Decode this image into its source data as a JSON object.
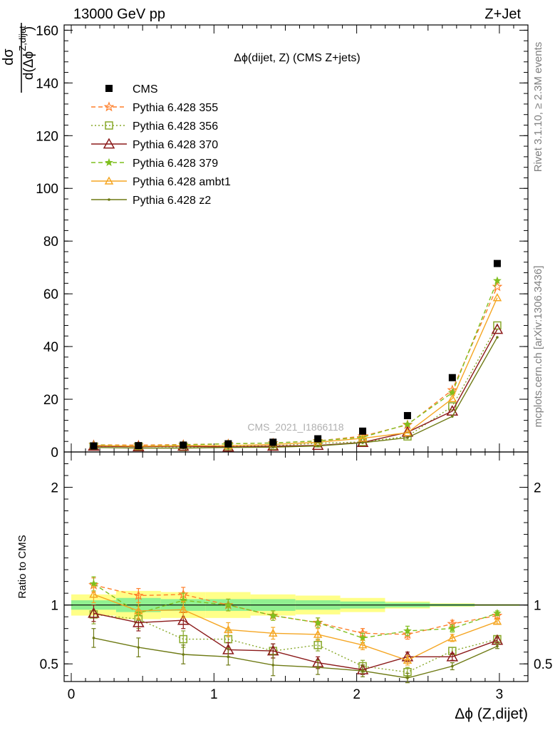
{
  "header": {
    "left": "13000 GeV pp",
    "right": "Z+Jet"
  },
  "side_text": {
    "rivet": "Rivet 3.1.10, ≥ 2.3M events",
    "mcplots": "mcplots.cern.ch [arXiv:1306.3436]"
  },
  "watermark": "CMS_2021_I1866118",
  "chart_data": [
    {
      "type": "scatter",
      "panel": "main",
      "title": "Δϕ(dijet, Z) (CMS Z+jets)",
      "ylabel": "dσ / d(Δϕ Z,dijet)",
      "xlim": [
        -0.05,
        3.2
      ],
      "ylim": [
        0,
        162
      ],
      "xticks": [
        "0",
        "1",
        "2",
        "3"
      ],
      "yticks": [
        "0",
        "20",
        "40",
        "60",
        "80",
        "100",
        "120",
        "140",
        "160"
      ],
      "x": [
        0.157,
        0.471,
        0.785,
        1.1,
        1.414,
        1.728,
        2.042,
        2.356,
        2.67,
        2.985
      ],
      "legend_placement": "top-left",
      "series": [
        {
          "name": "CMS",
          "color": "#000000",
          "style": "solid",
          "marker": "square",
          "values": [
            2.3,
            2.4,
            2.6,
            3.1,
            3.7,
            5.0,
            7.9,
            13.8,
            28.2,
            71.5
          ]
        },
        {
          "name": "Pythia 6.428 355",
          "color": "#ff7f2a",
          "style": "dashed",
          "marker": "star",
          "values": [
            2.7,
            2.6,
            2.8,
            3.1,
            3.4,
            4.2,
            6.0,
            10.3,
            23.5,
            62.7
          ]
        },
        {
          "name": "Pythia 6.428 356",
          "color": "#88a82a",
          "style": "dotted",
          "marker": "open-square",
          "values": [
            2.1,
            2.1,
            1.9,
            2.2,
            2.3,
            3.3,
            3.8,
            5.9,
            17.3,
            48.0
          ]
        },
        {
          "name": "Pythia 6.428 370",
          "color": "#8b1a1a",
          "style": "solid",
          "marker": "open-triangle",
          "values": [
            2.2,
            2.0,
            2.2,
            1.9,
            2.2,
            2.5,
            3.6,
            7.5,
            15.5,
            46.5
          ]
        },
        {
          "name": "Pythia 6.428 379",
          "color": "#7fbf1f",
          "style": "dashed",
          "marker": "small-star",
          "values": [
            2.7,
            2.2,
            2.7,
            3.1,
            3.4,
            4.2,
            5.6,
            10.5,
            22.5,
            65.0
          ]
        },
        {
          "name": "Pythia 6.428 ambt1",
          "color": "#f5a623",
          "style": "solid",
          "marker": "open-triangle-small",
          "values": [
            2.5,
            2.2,
            2.4,
            2.4,
            2.8,
            3.7,
            5.2,
            7.3,
            20.2,
            58.5
          ]
        },
        {
          "name": "Pythia 6.428 z2",
          "color": "#6e7a14",
          "style": "solid",
          "marker": "dot",
          "values": [
            1.7,
            1.5,
            1.5,
            1.7,
            1.8,
            2.3,
            3.5,
            5.4,
            13.5,
            43.5
          ]
        }
      ]
    },
    {
      "type": "line",
      "panel": "ratio",
      "ylabel": "Ratio to CMS",
      "xlabel": "Δϕ (Z,dijet)",
      "xlim": [
        -0.05,
        3.2
      ],
      "ylim": [
        0.35,
        2.3
      ],
      "xticks": [
        "0",
        "1",
        "2",
        "3"
      ],
      "yticks": [
        "0.5",
        "1",
        "2"
      ],
      "x": [
        0.157,
        0.471,
        0.785,
        1.1,
        1.414,
        1.728,
        2.042,
        2.356,
        2.67,
        2.985
      ],
      "bands": {
        "edges": [
          0.0,
          0.314,
          0.628,
          0.942,
          1.256,
          1.571,
          1.885,
          2.199,
          2.513,
          2.827,
          3.142
        ],
        "inner_halfwidth": [
          0.04,
          0.06,
          0.05,
          0.05,
          0.05,
          0.04,
          0.03,
          0.02,
          0.01,
          0.005
        ],
        "outer_halfwidth": [
          0.09,
          0.12,
          0.11,
          0.11,
          0.09,
          0.08,
          0.06,
          0.03,
          0.015,
          0.008
        ]
      },
      "series": [
        {
          "name": "Pythia 6.428 355",
          "color": "#ff7f2a",
          "style": "dashed",
          "marker": "star",
          "values": [
            1.17,
            1.08,
            1.09,
            1.0,
            0.91,
            0.85,
            0.76,
            0.75,
            0.84,
            0.91
          ],
          "errors": [
            0.06,
            0.06,
            0.06,
            0.05,
            0.04,
            0.04,
            0.04,
            0.04,
            0.03,
            0.02
          ]
        },
        {
          "name": "Pythia 6.428 356",
          "color": "#88a82a",
          "style": "dotted",
          "marker": "open-square",
          "values": [
            0.92,
            0.88,
            0.71,
            0.71,
            0.61,
            0.66,
            0.48,
            0.43,
            0.61,
            0.71
          ],
          "errors": [
            0.08,
            0.08,
            0.07,
            0.07,
            0.06,
            0.05,
            0.05,
            0.04,
            0.03,
            0.02
          ]
        },
        {
          "name": "Pythia 6.428 370",
          "color": "#8b1a1a",
          "style": "solid",
          "marker": "open-triangle",
          "values": [
            0.93,
            0.85,
            0.87,
            0.62,
            0.61,
            0.51,
            0.45,
            0.56,
            0.56,
            0.7
          ],
          "errors": [
            0.07,
            0.07,
            0.07,
            0.06,
            0.06,
            0.05,
            0.04,
            0.04,
            0.03,
            0.02
          ]
        },
        {
          "name": "Pythia 6.428 379",
          "color": "#7fbf1f",
          "style": "dashed",
          "marker": "small-star",
          "values": [
            1.18,
            0.93,
            1.04,
            1.0,
            0.91,
            0.85,
            0.72,
            0.78,
            0.8,
            0.93
          ],
          "errors": [
            0.06,
            0.06,
            0.06,
            0.05,
            0.04,
            0.04,
            0.04,
            0.04,
            0.03,
            0.02
          ]
        },
        {
          "name": "Pythia 6.428 ambt1",
          "color": "#f5a623",
          "style": "solid",
          "marker": "open-triangle-small",
          "values": [
            1.09,
            0.95,
            0.96,
            0.79,
            0.76,
            0.75,
            0.66,
            0.53,
            0.72,
            0.86
          ],
          "errors": [
            0.07,
            0.07,
            0.07,
            0.06,
            0.05,
            0.05,
            0.04,
            0.04,
            0.03,
            0.02
          ]
        },
        {
          "name": "Pythia 6.428 z2",
          "color": "#6e7a14",
          "style": "solid",
          "marker": "dot",
          "values": [
            0.72,
            0.64,
            0.58,
            0.56,
            0.49,
            0.47,
            0.44,
            0.38,
            0.48,
            0.65
          ],
          "errors": [
            0.08,
            0.08,
            0.08,
            0.07,
            0.09,
            0.06,
            0.05,
            0.04,
            0.03,
            0.02
          ]
        }
      ]
    }
  ]
}
